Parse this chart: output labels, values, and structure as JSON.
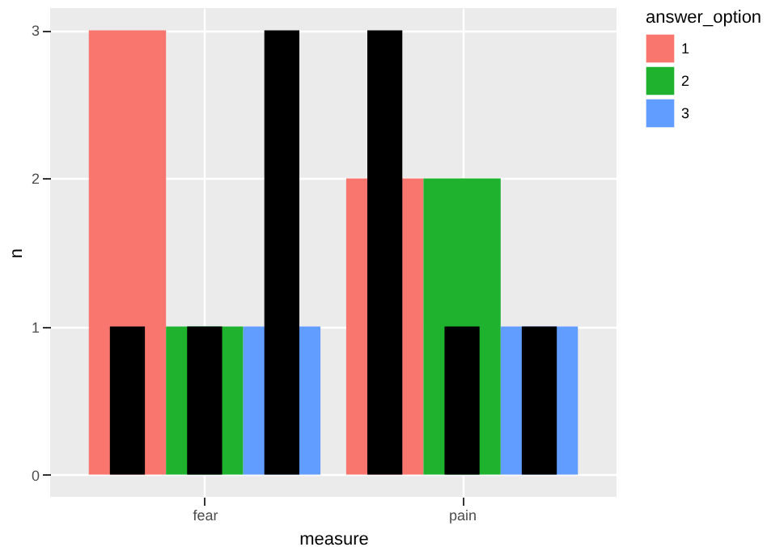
{
  "chart_data": {
    "type": "bar",
    "xlabel": "measure",
    "ylabel": "n",
    "legend_title": "answer_option",
    "categories": [
      "fear",
      "pain"
    ],
    "series": [
      {
        "name": "1",
        "color": "#f8766d",
        "values": [
          3,
          2
        ]
      },
      {
        "name": "2",
        "color": "#1fb22f",
        "values": [
          1,
          2
        ]
      },
      {
        "name": "3",
        "color": "#619cff",
        "values": [
          1,
          1
        ]
      },
      {
        "color": "#000000",
        "values": [
          1,
          3
        ]
      },
      {
        "color": "#000000",
        "values": [
          1,
          1
        ]
      },
      {
        "color": "#000000",
        "values": [
          3,
          1
        ]
      }
    ],
    "ylim": [
      -0.15,
      3.15
    ],
    "yticks": [
      0,
      1,
      2,
      3
    ],
    "grid": true,
    "legend": "right"
  }
}
